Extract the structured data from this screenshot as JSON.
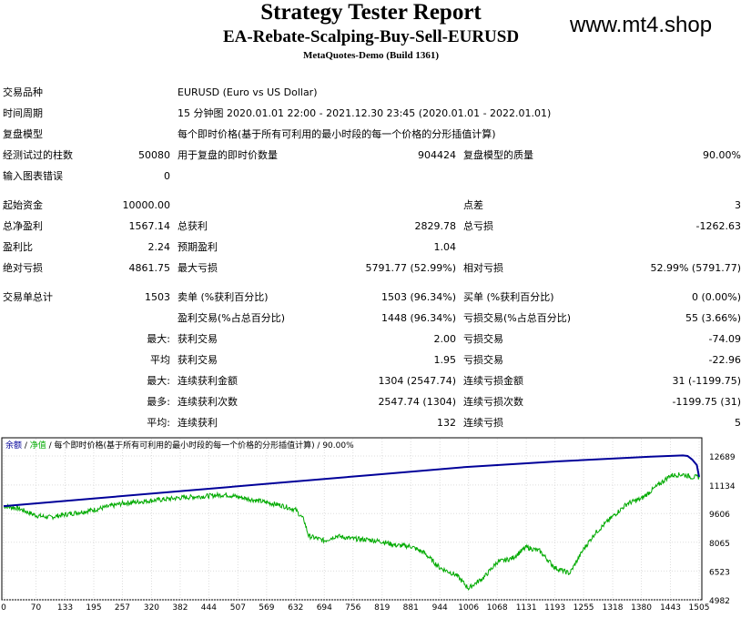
{
  "header": {
    "title": "Strategy Tester Report",
    "subtitle": "EA-Rebate-Scalping-Buy-Sell-EURUSD",
    "build": "MetaQuotes-Demo (Build 1361)",
    "watermark": "www.mt4.shop"
  },
  "info": {
    "symbol": {
      "label": "交易品种",
      "value": "EURUSD (Euro vs US Dollar)"
    },
    "period": {
      "label": "时间周期",
      "value": "15 分钟图 2020.01.01 22:00 - 2021.12.30 23:45 (2020.01.01 - 2022.01.01)"
    },
    "model": {
      "label": "复盘模型",
      "value": "每个即时价格(基于所有可利用的最小时段的每一个价格的分形插值计算)"
    },
    "bars": {
      "label": "经测试过的柱数",
      "value": "50080"
    },
    "ticks": {
      "label": "用于复盘的即时价数量",
      "value": "904424"
    },
    "quality": {
      "label": "复盘模型的质量",
      "value": "90.00%"
    },
    "errors": {
      "label": "输入图表错误",
      "value": "0"
    }
  },
  "stats": {
    "initial_deposit": {
      "label": "起始资金",
      "value": "10000.00"
    },
    "spread": {
      "label": "点差",
      "value": "3"
    },
    "net_profit": {
      "label": "总净盈利",
      "value": "1567.14"
    },
    "gross_profit": {
      "label": "总获利",
      "value": "2829.78"
    },
    "gross_loss": {
      "label": "总亏损",
      "value": "-1262.63"
    },
    "profit_factor": {
      "label": "盈利比",
      "value": "2.24"
    },
    "expected_payoff": {
      "label": "预期盈利",
      "value": "1.04"
    },
    "abs_drawdown": {
      "label": "绝对亏损",
      "value": "4861.75"
    },
    "max_drawdown": {
      "label": "最大亏损",
      "value": "5791.77 (52.99%)"
    },
    "rel_drawdown": {
      "label": "相对亏损",
      "value": "52.99% (5791.77)"
    },
    "total_trades": {
      "label": "交易单总计",
      "value": "1503"
    },
    "short_positions": {
      "label": "卖单 (%获利百分比)",
      "value": "1503 (96.34%)"
    },
    "long_positions": {
      "label": "买单 (%获利百分比)",
      "value": "0 (0.00%)"
    },
    "profit_trades": {
      "label": "盈利交易(%占总百分比)",
      "value": "1448 (96.34%)"
    },
    "loss_trades": {
      "label": "亏损交易(%占总百分比)",
      "value": "55 (3.66%)"
    },
    "largest": {
      "prefix": "最大:",
      "profit_label": "获利交易",
      "profit": "2.00",
      "loss_label": "亏损交易",
      "loss": "-74.09"
    },
    "average": {
      "prefix": "平均",
      "profit_label": "获利交易",
      "profit": "1.95",
      "loss_label": "亏损交易",
      "loss": "-22.96"
    },
    "max_consec_money": {
      "prefix": "最大:",
      "wins_label": "连续获利金额",
      "wins": "1304 (2547.74)",
      "losses_label": "连续亏损金额",
      "losses": "31 (-1199.75)"
    },
    "max_consec_count": {
      "prefix": "最多:",
      "wins_label": "连续获利次数",
      "wins": "2547.74 (1304)",
      "losses_label": "连续亏损次数",
      "losses": "-1199.75 (31)"
    },
    "avg_consec": {
      "prefix": "平均:",
      "wins_label": "连续获利",
      "wins": "132",
      "losses_label": "连续亏损",
      "losses": "5"
    }
  },
  "chart_data": {
    "type": "line",
    "legend": {
      "balance": "余额",
      "sep1": " / ",
      "equity": "净值",
      "rest": " / 每个即时价格(基于所有可利用的最小时段的每一个价格的分形插值计算) / 90.00%"
    },
    "x_ticks": [
      "0",
      "70",
      "133",
      "195",
      "257",
      "320",
      "382",
      "444",
      "507",
      "569",
      "632",
      "694",
      "756",
      "819",
      "881",
      "944",
      "1006",
      "1068",
      "1131",
      "1193",
      "1255",
      "1318",
      "1380",
      "1443",
      "1505"
    ],
    "y_ticks": [
      "12689",
      "11134",
      "9606",
      "8065",
      "6523",
      "4982"
    ],
    "ylim": [
      4982,
      12689
    ],
    "xlim": [
      0,
      1505
    ],
    "series": [
      {
        "name": "余额",
        "color": "#000099",
        "points": [
          [
            0,
            10000
          ],
          [
            200,
            10420
          ],
          [
            400,
            10840
          ],
          [
            600,
            11260
          ],
          [
            800,
            11680
          ],
          [
            1000,
            12100
          ],
          [
            1200,
            12400
          ],
          [
            1400,
            12650
          ],
          [
            1470,
            12720
          ],
          [
            1480,
            12690
          ],
          [
            1490,
            12500
          ],
          [
            1500,
            12200
          ],
          [
            1505,
            11567
          ]
        ]
      },
      {
        "name": "净值",
        "color": "#00aa00",
        "points": [
          [
            0,
            10000
          ],
          [
            30,
            9900
          ],
          [
            70,
            9500
          ],
          [
            100,
            9400
          ],
          [
            133,
            9550
          ],
          [
            195,
            9800
          ],
          [
            257,
            10150
          ],
          [
            320,
            10300
          ],
          [
            382,
            10450
          ],
          [
            444,
            10550
          ],
          [
            480,
            10620
          ],
          [
            507,
            10500
          ],
          [
            569,
            10200
          ],
          [
            600,
            10050
          ],
          [
            632,
            9800
          ],
          [
            650,
            9250
          ],
          [
            660,
            8400
          ],
          [
            694,
            8150
          ],
          [
            720,
            8400
          ],
          [
            756,
            8250
          ],
          [
            790,
            8200
          ],
          [
            819,
            8100
          ],
          [
            850,
            7900
          ],
          [
            881,
            7850
          ],
          [
            910,
            7500
          ],
          [
            944,
            6700
          ],
          [
            980,
            6300
          ],
          [
            1006,
            5600
          ],
          [
            1040,
            6200
          ],
          [
            1068,
            7000
          ],
          [
            1100,
            7200
          ],
          [
            1131,
            7800
          ],
          [
            1160,
            7600
          ],
          [
            1193,
            6700
          ],
          [
            1225,
            6400
          ],
          [
            1255,
            7700
          ],
          [
            1280,
            8550
          ],
          [
            1318,
            9450
          ],
          [
            1350,
            10150
          ],
          [
            1380,
            10400
          ],
          [
            1410,
            11000
          ],
          [
            1443,
            11650
          ],
          [
            1470,
            11700
          ],
          [
            1490,
            11550
          ],
          [
            1505,
            11567
          ]
        ]
      }
    ]
  }
}
